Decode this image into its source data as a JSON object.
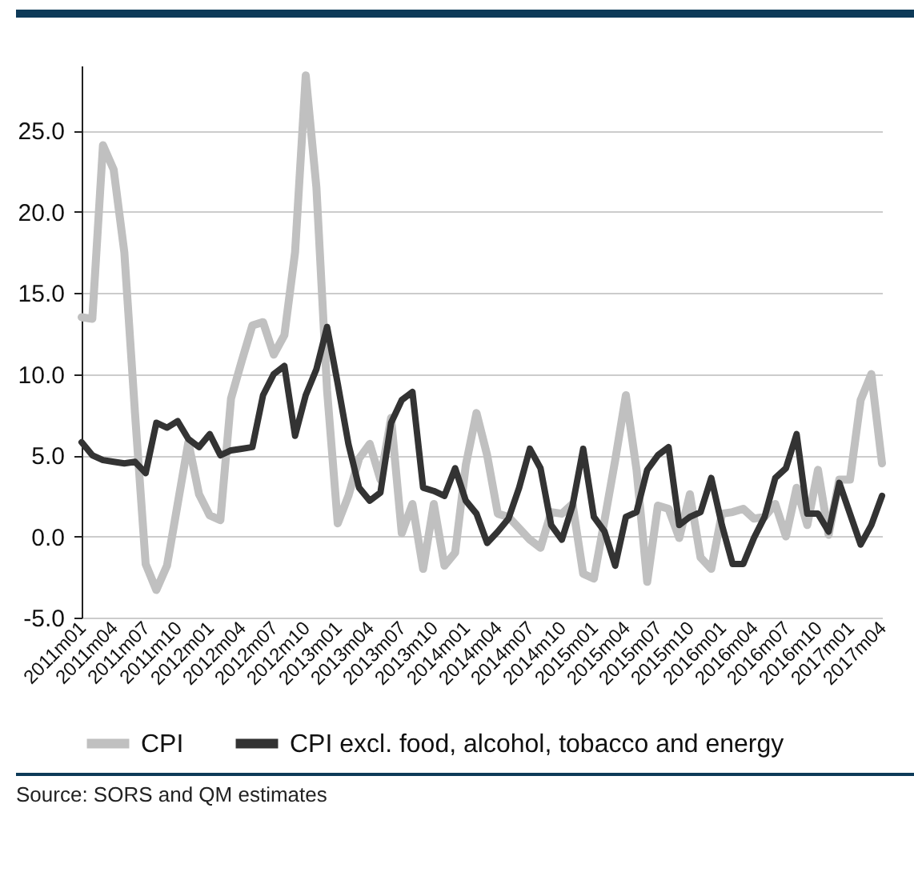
{
  "chart_data": {
    "type": "line",
    "categories": [
      "2011m01",
      null,
      null,
      "2011m04",
      null,
      null,
      "2011m07",
      null,
      null,
      "2011m10",
      null,
      null,
      "2012m01",
      null,
      null,
      "2012m04",
      null,
      null,
      "2012m07",
      null,
      null,
      "2012m10",
      null,
      null,
      "2013m01",
      null,
      null,
      "2013m04",
      null,
      null,
      "2013m07",
      null,
      null,
      "2013m10",
      null,
      null,
      "2014m01",
      null,
      null,
      "2014m04",
      null,
      null,
      "2014m07",
      null,
      null,
      "2014m10",
      null,
      null,
      "2015m01",
      null,
      null,
      "2015m04",
      null,
      null,
      "2015m07",
      null,
      null,
      "2015m10",
      null,
      null,
      "2016m01",
      null,
      null,
      "2016m04",
      null,
      null,
      "2016m07",
      null,
      null,
      "2016m10",
      null,
      null,
      "2017m01",
      null,
      null,
      "2017m04"
    ],
    "series": [
      {
        "name": "CPI",
        "color": "#c0c0c0",
        "values": [
          13.5,
          13.4,
          24.1,
          22.6,
          17.5,
          7.6,
          -1.7,
          -3.3,
          -1.8,
          2.0,
          5.8,
          2.6,
          1.3,
          1.0,
          8.5,
          10.8,
          13.0,
          13.2,
          11.2,
          12.4,
          17.5,
          28.4,
          21.5,
          9.0,
          0.8,
          2.5,
          4.8,
          5.7,
          3.5,
          7.3,
          0.2,
          2.0,
          -2.0,
          2.0,
          -1.8,
          -1.0,
          4.4,
          7.6,
          5.0,
          1.4,
          1.2,
          0.5,
          -0.2,
          -0.7,
          1.5,
          1.4,
          2.0,
          -2.3,
          -2.6,
          1.0,
          4.7,
          8.7,
          4.1,
          -2.8,
          1.9,
          1.7,
          -0.1,
          2.6,
          -1.3,
          -2.0,
          1.4,
          1.5,
          1.7,
          1.1,
          1.2,
          2.0,
          0.0,
          3.0,
          0.7,
          4.1,
          0.1,
          3.5,
          3.5,
          8.4,
          10.0,
          4.5
        ]
      },
      {
        "name": "CPI excl. food, alcohol, tobacco and energy",
        "color": "#333333",
        "values": [
          5.8,
          5.0,
          4.7,
          4.6,
          4.5,
          4.6,
          3.9,
          7.0,
          6.7,
          7.1,
          6.0,
          5.5,
          6.3,
          5.0,
          5.3,
          5.4,
          5.5,
          8.7,
          10.0,
          10.5,
          6.2,
          8.7,
          10.3,
          12.9,
          9.4,
          5.7,
          3.0,
          2.2,
          2.7,
          7.0,
          8.4,
          8.9,
          3.0,
          2.8,
          2.5,
          4.2,
          2.2,
          1.4,
          -0.4,
          0.3,
          1.1,
          3.0,
          5.4,
          4.2,
          0.7,
          -0.2,
          1.9,
          5.4,
          1.2,
          0.3,
          -1.8,
          1.2,
          1.5,
          4.1,
          5.0,
          5.5,
          0.7,
          1.2,
          1.5,
          3.6,
          0.7,
          -1.7,
          -1.7,
          -0.1,
          1.2,
          3.6,
          4.2,
          6.3,
          1.4,
          1.4,
          0.3,
          3.3,
          1.4,
          -0.5,
          0.7,
          2.5
        ]
      }
    ],
    "ylim": [
      -5,
      29
    ],
    "yticks": [
      {
        "value": -5,
        "label": "-5.0"
      },
      {
        "value": 0,
        "label": "0.0"
      },
      {
        "value": 5,
        "label": "5.0"
      },
      {
        "value": 10,
        "label": "10.0"
      },
      {
        "value": 15,
        "label": "15.0"
      },
      {
        "value": 20,
        "label": "20.0"
      },
      {
        "value": 25,
        "label": "25.0"
      }
    ],
    "grid": "y",
    "legend": "bottom",
    "marker": "none",
    "line_style": "solid",
    "annotations": [
      "Source: SORS and QM estimates"
    ]
  }
}
